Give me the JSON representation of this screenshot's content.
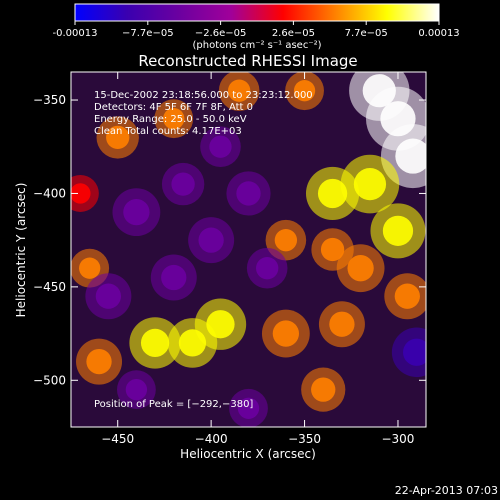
{
  "chart_data": {
    "type": "heatmap",
    "title": "Reconstructed RHESSI Image",
    "colorbar": {
      "ticks": [
        "-0.00013",
        "−7.7e−05",
        "−2.6e−05",
        "2.6e−05",
        "7.7e−05",
        "0.00013"
      ],
      "unit_label": "(photons cm⁻² s⁻¹ asec⁻²)",
      "range": [
        -0.00013,
        0.00013
      ],
      "colormap": [
        "#0000ff",
        "#3a00b0",
        "#6b00a0",
        "#a0009a",
        "#ff0000",
        "#ff8000",
        "#ffff00",
        "#ffffff"
      ]
    },
    "xlabel": "Heliocentric X (arcsec)",
    "ylabel": "Heliocentric Y (arcsec)",
    "xlim": [
      -475,
      -285
    ],
    "ylim": [
      -525,
      -335
    ],
    "x_ticks": [
      -450,
      -400,
      -350,
      -300
    ],
    "y_ticks": [
      -350,
      -400,
      -450,
      -500
    ],
    "x_tick_labels": [
      "−450",
      "−400",
      "−350",
      "−300"
    ],
    "y_tick_labels": [
      "−350",
      "−400",
      "−450",
      "−500"
    ],
    "annotations": [
      "15-Dec-2002 23:18:56.000 to 23:23:12.000",
      "Detectors: 4F 5F 6F 7F 8F, Att 0",
      "Energy Range: 25.0 - 50.0 keV",
      "Clean     Total counts: 4.17E+03"
    ],
    "peak_label": "Position of Peak = [−292,−380]",
    "peak": [
      -292,
      -380
    ],
    "blobs": [
      {
        "x": -300,
        "y": -360,
        "v": 1.0
      },
      {
        "x": -292,
        "y": -380,
        "v": 1.0
      },
      {
        "x": -310,
        "y": -345,
        "v": 0.9
      },
      {
        "x": -315,
        "y": -395,
        "v": 0.85
      },
      {
        "x": -335,
        "y": -400,
        "v": 0.7
      },
      {
        "x": -300,
        "y": -420,
        "v": 0.75
      },
      {
        "x": -320,
        "y": -440,
        "v": 0.55
      },
      {
        "x": -295,
        "y": -455,
        "v": 0.5
      },
      {
        "x": -330,
        "y": -470,
        "v": 0.5
      },
      {
        "x": -360,
        "y": -475,
        "v": 0.55
      },
      {
        "x": -395,
        "y": -470,
        "v": 0.65
      },
      {
        "x": -410,
        "y": -480,
        "v": 0.6
      },
      {
        "x": -430,
        "y": -480,
        "v": 0.65
      },
      {
        "x": -460,
        "y": -490,
        "v": 0.5
      },
      {
        "x": -340,
        "y": -505,
        "v": 0.45
      },
      {
        "x": -450,
        "y": -370,
        "v": 0.4
      },
      {
        "x": -420,
        "y": -360,
        "v": 0.3
      },
      {
        "x": -385,
        "y": -345,
        "v": 0.35
      },
      {
        "x": -350,
        "y": -345,
        "v": 0.3
      },
      {
        "x": -360,
        "y": -425,
        "v": 0.35
      },
      {
        "x": -335,
        "y": -430,
        "v": 0.4
      },
      {
        "x": -465,
        "y": -440,
        "v": 0.3
      },
      {
        "x": -470,
        "y": -400,
        "v": 0.25
      },
      {
        "x": -420,
        "y": -445,
        "v": -0.5
      },
      {
        "x": -440,
        "y": -410,
        "v": -0.55
      },
      {
        "x": -400,
        "y": -425,
        "v": -0.5
      },
      {
        "x": -380,
        "y": -400,
        "v": -0.45
      },
      {
        "x": -455,
        "y": -455,
        "v": -0.5
      },
      {
        "x": -415,
        "y": -395,
        "v": -0.4
      },
      {
        "x": -370,
        "y": -440,
        "v": -0.35
      },
      {
        "x": -290,
        "y": -485,
        "v": -0.6
      },
      {
        "x": -395,
        "y": -375,
        "v": -0.35
      },
      {
        "x": -440,
        "y": -505,
        "v": -0.3
      },
      {
        "x": -380,
        "y": -515,
        "v": -0.3
      }
    ]
  },
  "footer": {
    "timestamp": "22-Apr-2013 07:03"
  }
}
